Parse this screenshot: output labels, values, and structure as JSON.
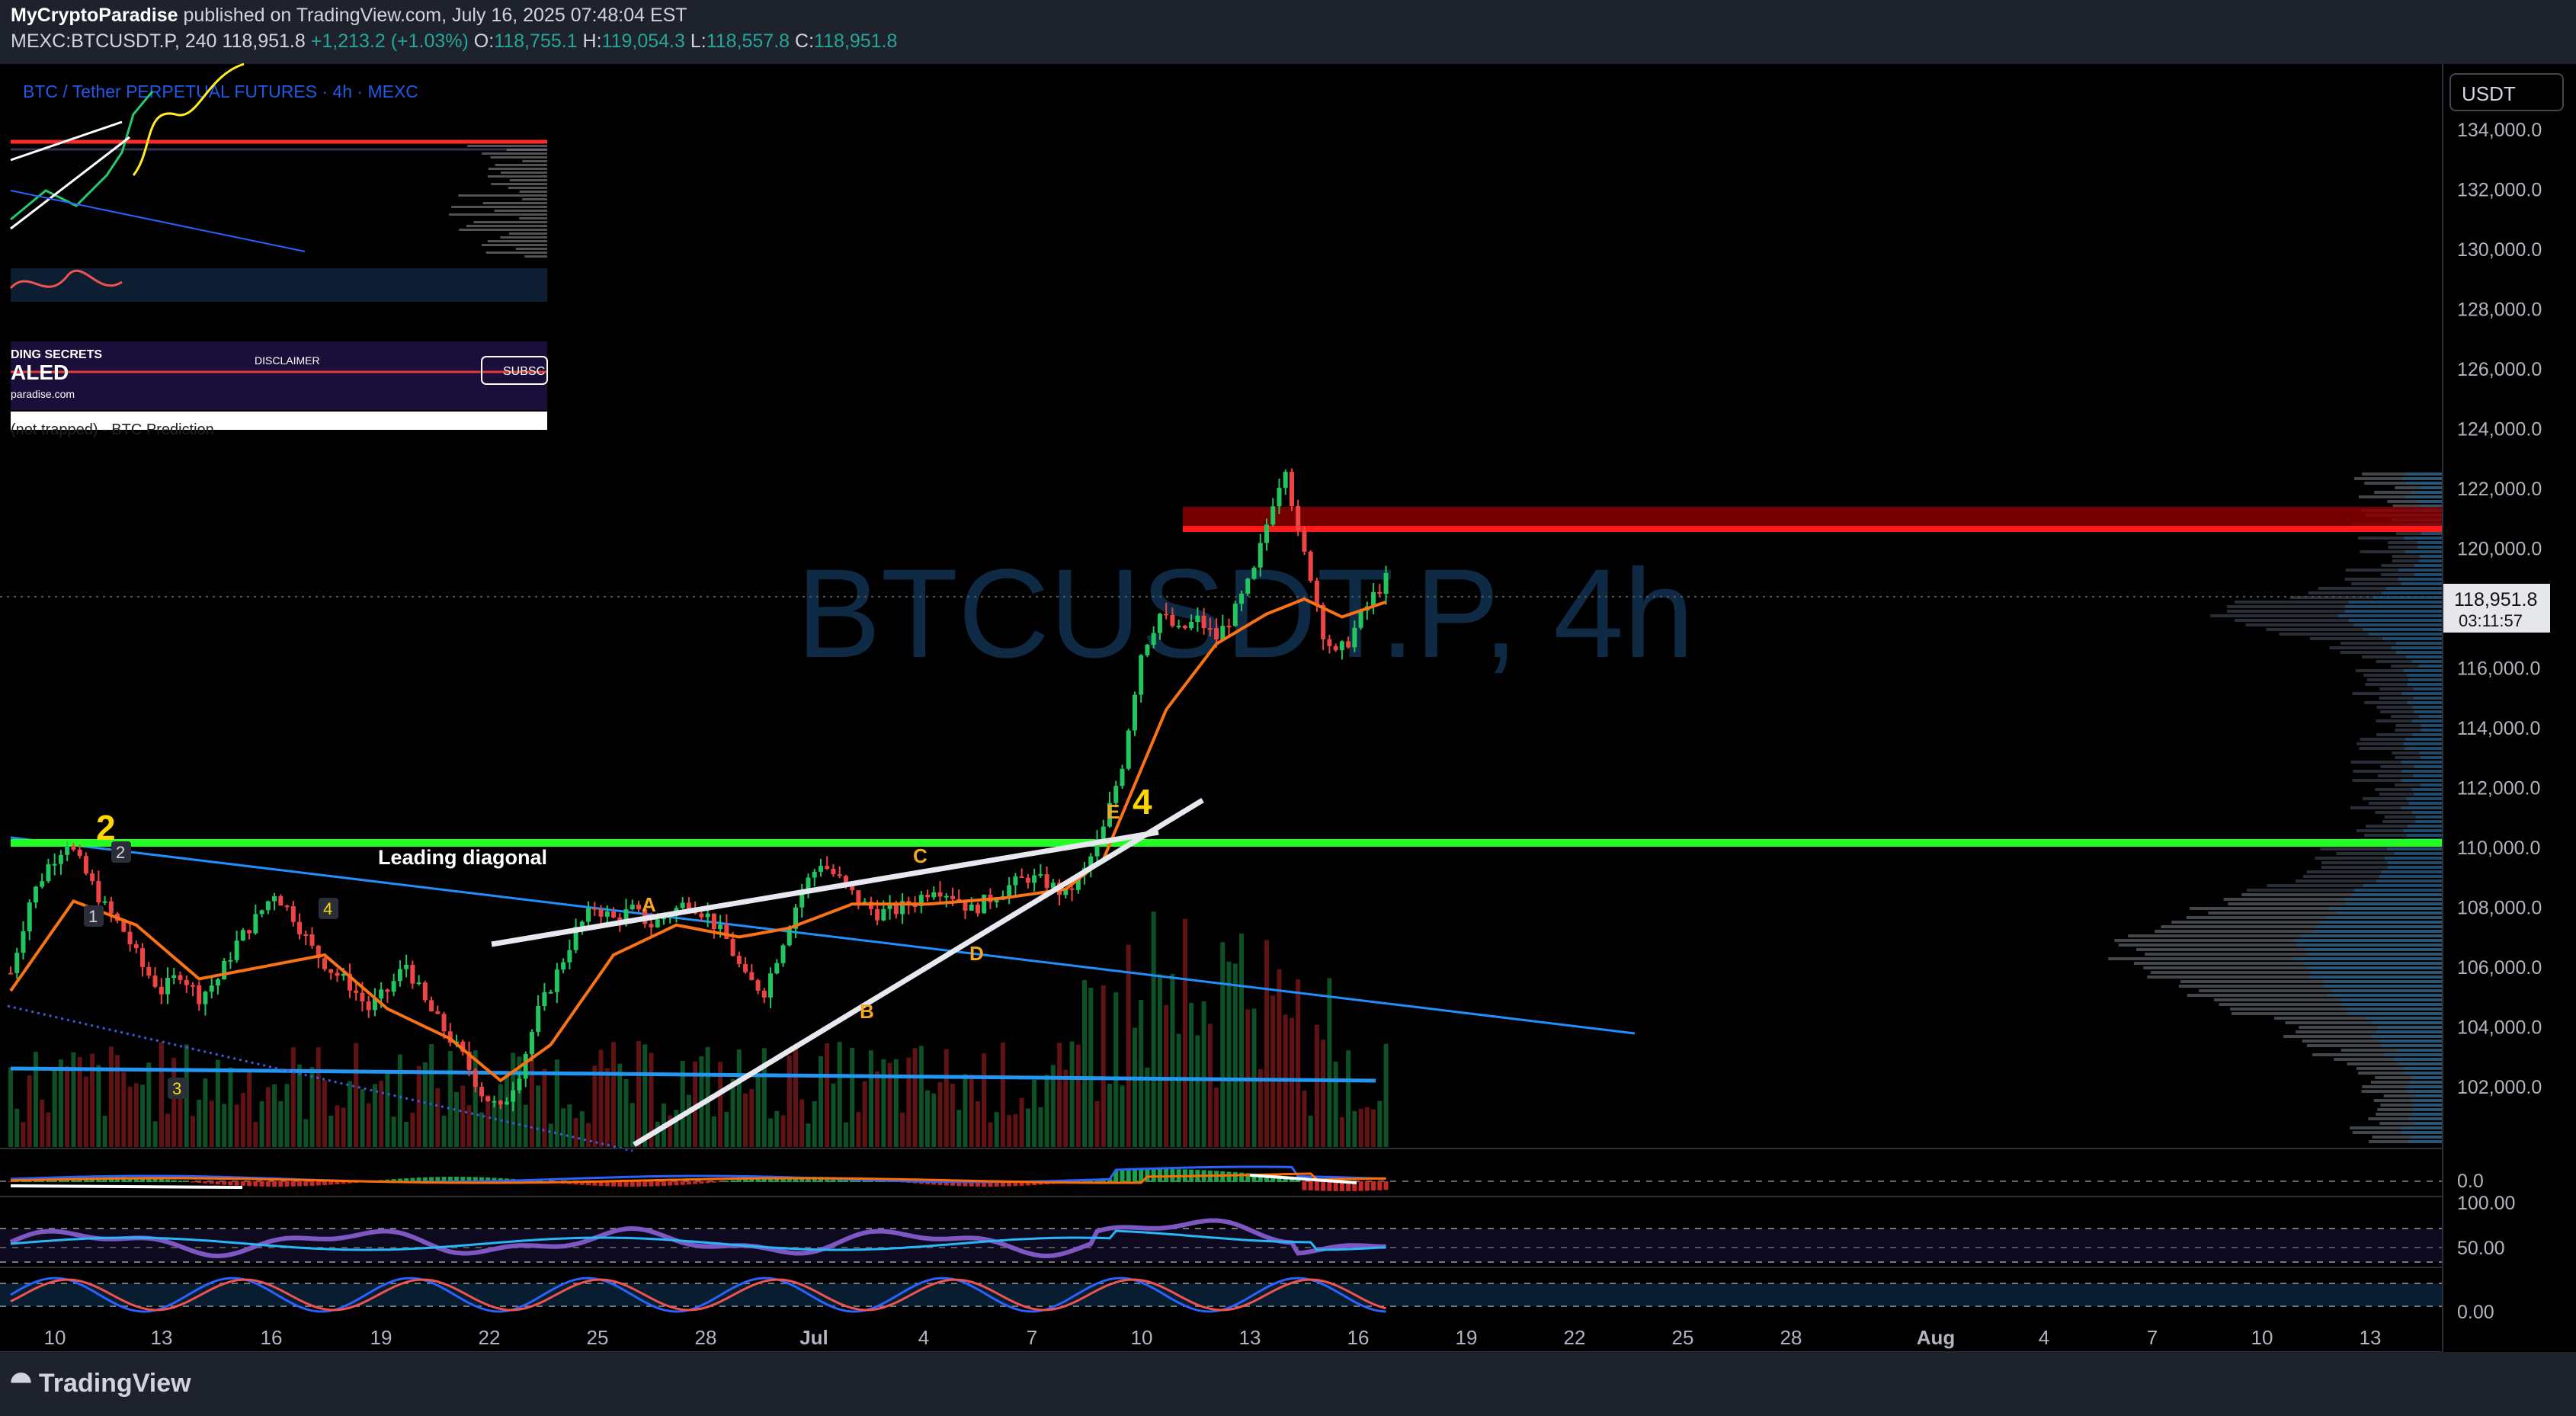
{
  "header": {
    "author": "MyCryptoParadise",
    "published": "published on TradingView.com, July 16, 2025 07:48:04 EST",
    "symbol": "MEXC:BTCUSDT.P, 240",
    "last": "118,951.8",
    "change": "+1,213.2 (+1.03%)",
    "o_label": "O:",
    "o": "118,755.1",
    "h_label": "H:",
    "h": "119,054.3",
    "l_label": "L:",
    "l": "118,557.8",
    "c_label": "C:",
    "c": "118,951.8"
  },
  "axis": {
    "currency": "USDT",
    "price_tag": "118,951.8",
    "countdown": "03:11:57",
    "osc_labels": [
      "0.0",
      "100.00",
      "50.00",
      "0.00"
    ]
  },
  "watermark": "BTCUSDT.P, 4h",
  "inset": {
    "title": "BTC / Tether PERPETUAL FUTURES · 4h · MEXC",
    "ghost_title": "(not trapped) - BTC Prediction",
    "banner_left": "DING SECRETS",
    "banner_caps": "ALED",
    "banner_site": "paradise.com",
    "banner_mid": "DISCLAIMER",
    "banner_btn": "SUBSC"
  },
  "annotations": {
    "wave_2": "2",
    "small_2": "2",
    "small_1": "1",
    "small_3": "3",
    "small_4": "4",
    "wave_4": "4",
    "leading_diagonal": "Leading diagonal",
    "A": "A",
    "B": "B",
    "C": "C",
    "D": "D",
    "E": "E"
  },
  "footer": {
    "brand": "TradingView"
  },
  "colors": {
    "up": "#22c55e",
    "down": "#ef4444",
    "ema": "#f97316",
    "support": "#22ff22",
    "resistance": "#d40000",
    "accent": "#2962ff"
  },
  "chart_data": {
    "type": "candlestick",
    "symbol": "BTCUSDT.P",
    "timeframe": "4h",
    "ylim": [
      100500,
      136000
    ],
    "yticks": [
      102000,
      104000,
      106000,
      108000,
      110000,
      112000,
      114000,
      116000,
      118000,
      120000,
      122000,
      124000,
      126000,
      128000,
      130000,
      132000,
      134000
    ],
    "ytick_labels": [
      "102,000.0",
      "104,000.0",
      "106,000.0",
      "108,000.0",
      "110,000.0",
      "112,000.0",
      "114,000.0",
      "116,000.0",
      "118,000.0",
      "120,000.0",
      "122,000.0",
      "124,000.0",
      "126,000.0",
      "128,000.0",
      "130,000.0",
      "132,000.0",
      "134,000.0"
    ],
    "xticks": [
      "10",
      "13",
      "16",
      "19",
      "22",
      "25",
      "28",
      "Jul",
      "4",
      "7",
      "10",
      "13",
      "16",
      "19",
      "22",
      "25",
      "28",
      "Aug",
      "4",
      "7",
      "10",
      "13"
    ],
    "support_level": 110600,
    "resistance_zone": [
      121100,
      122000
    ],
    "last_price": 118951.8,
    "close_path": [
      [
        0,
        105800
      ],
      [
        3,
        108200
      ],
      [
        6,
        109400
      ],
      [
        9,
        110200
      ],
      [
        12,
        109100
      ],
      [
        15,
        108000
      ],
      [
        18,
        107200
      ],
      [
        21,
        106000
      ],
      [
        24,
        105200
      ],
      [
        27,
        105800
      ],
      [
        30,
        105000
      ],
      [
        33,
        105600
      ],
      [
        36,
        106800
      ],
      [
        39,
        107600
      ],
      [
        42,
        108500
      ],
      [
        45,
        107700
      ],
      [
        48,
        106600
      ],
      [
        51,
        105900
      ],
      [
        54,
        105400
      ],
      [
        57,
        104600
      ],
      [
        60,
        105200
      ],
      [
        63,
        106100
      ],
      [
        66,
        104800
      ],
      [
        69,
        103900
      ],
      [
        72,
        103000
      ],
      [
        75,
        101800
      ],
      [
        78,
        101200
      ],
      [
        81,
        102500
      ],
      [
        84,
        104500
      ],
      [
        87,
        105800
      ],
      [
        90,
        107200
      ],
      [
        93,
        108000
      ],
      [
        96,
        107600
      ],
      [
        99,
        107900
      ],
      [
        102,
        107400
      ],
      [
        105,
        107800
      ],
      [
        108,
        108200
      ],
      [
        111,
        107700
      ],
      [
        114,
        106900
      ],
      [
        117,
        105600
      ],
      [
        120,
        105200
      ],
      [
        123,
        106900
      ],
      [
        126,
        108600
      ],
      [
        129,
        109500
      ],
      [
        132,
        108900
      ],
      [
        135,
        108200
      ],
      [
        138,
        107800
      ],
      [
        141,
        107900
      ],
      [
        144,
        108200
      ],
      [
        147,
        108700
      ],
      [
        150,
        108400
      ],
      [
        153,
        107900
      ],
      [
        156,
        108300
      ],
      [
        159,
        108700
      ],
      [
        162,
        109000
      ],
      [
        165,
        108800
      ],
      [
        168,
        108400
      ],
      [
        171,
        109200
      ],
      [
        174,
        110600
      ],
      [
        177,
        112800
      ],
      [
        180,
        116500
      ],
      [
        183,
        117800
      ],
      [
        186,
        117200
      ],
      [
        189,
        117600
      ],
      [
        192,
        117000
      ],
      [
        195,
        117900
      ],
      [
        198,
        119200
      ],
      [
        201,
        121600
      ],
      [
        203,
        122800
      ],
      [
        205,
        120400
      ],
      [
        207,
        119100
      ],
      [
        209,
        117200
      ],
      [
        211,
        116400
      ],
      [
        213,
        116900
      ],
      [
        215,
        117700
      ],
      [
        217,
        118400
      ],
      [
        219,
        118951.8
      ]
    ],
    "ema_path": [
      [
        0,
        105200
      ],
      [
        10,
        108200
      ],
      [
        20,
        107400
      ],
      [
        30,
        105600
      ],
      [
        40,
        106000
      ],
      [
        50,
        106400
      ],
      [
        60,
        104600
      ],
      [
        70,
        103600
      ],
      [
        78,
        102200
      ],
      [
        86,
        103400
      ],
      [
        96,
        106400
      ],
      [
        106,
        107400
      ],
      [
        116,
        107000
      ],
      [
        124,
        107300
      ],
      [
        134,
        108100
      ],
      [
        146,
        108100
      ],
      [
        158,
        108300
      ],
      [
        168,
        108600
      ],
      [
        174,
        109600
      ],
      [
        178,
        111600
      ],
      [
        184,
        114600
      ],
      [
        192,
        116800
      ],
      [
        200,
        117800
      ],
      [
        206,
        118300
      ],
      [
        212,
        117700
      ],
      [
        219,
        118200
      ]
    ],
    "price_labels_on_axis": [
      "118,951.8"
    ]
  }
}
